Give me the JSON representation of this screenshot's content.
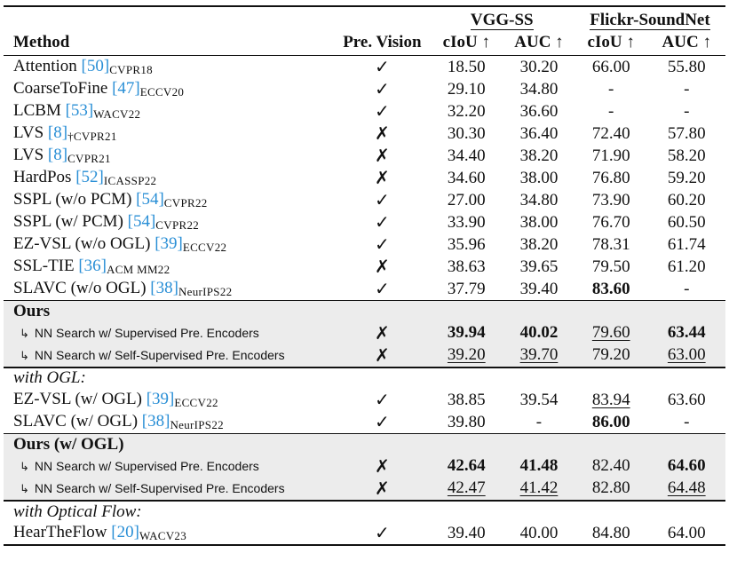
{
  "header": {
    "method": "Method",
    "pre_vision": "Pre. Vision",
    "vgg": "VGG-SS",
    "flickr": "Flickr-SoundNet",
    "ciou": "cIoU ↑",
    "auc": "AUC ↑"
  },
  "marks": {
    "check": "✓",
    "cross": "✗",
    "sub_arrow": "↳"
  },
  "sections": {
    "ours": "Ours",
    "with_ogl": "with OGL:",
    "ours_ogl": "Ours (w/ OGL)",
    "with_flow": "with Optical Flow:"
  },
  "rows_main": [
    {
      "name": "Attention ",
      "cite": "[50]",
      "venue": "CVPR18",
      "pre": "✓",
      "v1": "18.50",
      "v2": "30.20",
      "f1": "66.00",
      "f2": "55.80"
    },
    {
      "name": "CoarseToFine ",
      "cite": "[47]",
      "venue": "ECCV20",
      "pre": "✓",
      "v1": "29.10",
      "v2": "34.80",
      "f1": "-",
      "f2": "-"
    },
    {
      "name": "LCBM ",
      "cite": "[53]",
      "venue": "WACV22",
      "pre": "✓",
      "v1": "32.20",
      "v2": "36.60",
      "f1": "-",
      "f2": "-"
    },
    {
      "name": "LVS ",
      "cite": "[8]",
      "venue": "†CVPR21",
      "pre": "✗",
      "v1": "30.30",
      "v2": "36.40",
      "f1": "72.40",
      "f2": "57.80"
    },
    {
      "name": "LVS ",
      "cite": "[8]",
      "venue": "CVPR21",
      "pre": "✗",
      "v1": "34.40",
      "v2": "38.20",
      "f1": "71.90",
      "f2": "58.20"
    },
    {
      "name": "HardPos ",
      "cite": "[52]",
      "venue": "ICASSP22",
      "pre": "✗",
      "v1": "34.60",
      "v2": "38.00",
      "f1": "76.80",
      "f2": "59.20"
    },
    {
      "name": "SSPL (w/o PCM) ",
      "cite": "[54]",
      "venue": "CVPR22",
      "pre": "✓",
      "v1": "27.00",
      "v2": "34.80",
      "f1": "73.90",
      "f2": "60.20"
    },
    {
      "name": "SSPL (w/ PCM) ",
      "cite": "[54]",
      "venue": "CVPR22",
      "pre": "✓",
      "v1": "33.90",
      "v2": "38.00",
      "f1": "76.70",
      "f2": "60.50"
    },
    {
      "name": "EZ-VSL (w/o OGL) ",
      "cite": "[39]",
      "venue": "ECCV22",
      "pre": "✓",
      "v1": "35.96",
      "v2": "38.20",
      "f1": "78.31",
      "f2": "61.74"
    },
    {
      "name": "SSL-TIE ",
      "cite": "[36]",
      "venue": "ACM MM22",
      "pre": "✗",
      "v1": "38.63",
      "v2": "39.65",
      "f1": "79.50",
      "f2": "61.20"
    },
    {
      "name": "SLAVC (w/o OGL) ",
      "cite": "[38]",
      "venue": "NeurIPS22",
      "pre": "✓",
      "v1": "37.79",
      "v2": "39.40",
      "f1": "83.60",
      "f2": "-"
    }
  ],
  "rows_ours": [
    {
      "name": "NN Search w/ Supervised Pre. Encoders",
      "pre": "✗",
      "v1": "39.94",
      "v2": "40.02",
      "f1": "79.60",
      "f2": "63.44"
    },
    {
      "name": "NN Search w/ Self-Supervised Pre. Encoders",
      "pre": "✗",
      "v1": "39.20",
      "v2": "39.70",
      "f1": "79.20",
      "f2": "63.00"
    }
  ],
  "rows_ogl": [
    {
      "name": "EZ-VSL (w/ OGL) ",
      "cite": "[39]",
      "venue": "ECCV22",
      "pre": "✓",
      "v1": "38.85",
      "v2": "39.54",
      "f1": "83.94",
      "f2": "63.60"
    },
    {
      "name": "SLAVC (w/ OGL) ",
      "cite": "[38]",
      "venue": "NeurIPS22",
      "pre": "✓",
      "v1": "39.80",
      "v2": "-",
      "f1": "86.00",
      "f2": "-"
    }
  ],
  "rows_ours_ogl": [
    {
      "name": "NN Search w/ Supervised Pre. Encoders",
      "pre": "✗",
      "v1": "42.64",
      "v2": "41.48",
      "f1": "82.40",
      "f2": "64.60"
    },
    {
      "name": "NN Search w/ Self-Supervised Pre. Encoders",
      "pre": "✗",
      "v1": "42.47",
      "v2": "41.42",
      "f1": "82.80",
      "f2": "64.48"
    }
  ],
  "rows_flow": [
    {
      "name": "HearTheFlow ",
      "cite": "[20]",
      "venue": "WACV23",
      "pre": "✓",
      "v1": "39.40",
      "v2": "40.00",
      "f1": "84.80",
      "f2": "64.00"
    }
  ]
}
